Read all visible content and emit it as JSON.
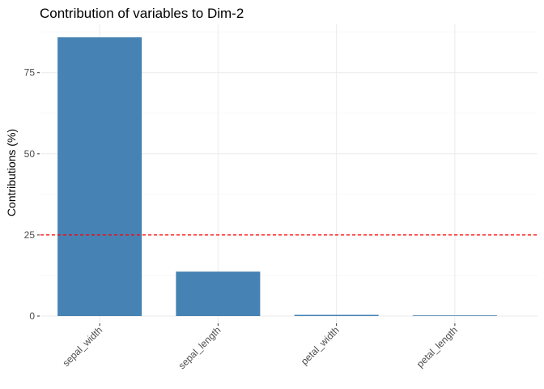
{
  "chart_data": {
    "type": "bar",
    "title": "Contribution of variables to Dim-2",
    "xlabel": "",
    "ylabel": "Contributions (%)",
    "categories": [
      "sepal_width",
      "sepal_length",
      "petal_width",
      "petal_length"
    ],
    "values": [
      85.9,
      13.7,
      0.37,
      0.02
    ],
    "ylim": [
      0,
      88
    ],
    "yticks": [
      0,
      25,
      50,
      75
    ],
    "reference_line": {
      "value": 25,
      "style": "dashed",
      "color": "#ff0000"
    },
    "bar_color": "#4682B4",
    "grid": true,
    "legend": "none"
  }
}
